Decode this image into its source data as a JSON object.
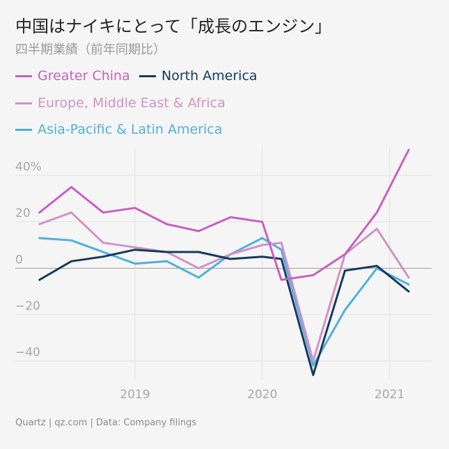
{
  "title": "中国はナイキにとって「成長のエンジン」",
  "subtitle": "四半期業績（前年同期比）",
  "source": "Quartz | qz.com | Data: Company filings",
  "colors": {
    "greater_china": "#c660c0",
    "north_america": "#153a5c",
    "emea": "#cf93c4",
    "apla": "#4fb0dc",
    "grid": "#e2e2e2",
    "zero_line": "#9a9a9a",
    "tick_text": "#a8a8a8"
  },
  "chart_data": {
    "type": "line",
    "title": "中国はナイキにとって「成長のエンジン」",
    "subtitle": "四半期業績（前年同期比）",
    "xlabel": "",
    "ylabel": "",
    "x": [
      2018.25,
      2018.5,
      2018.75,
      2019.0,
      2019.25,
      2019.5,
      2019.75,
      2020.0,
      2020.15,
      2020.4,
      2020.65,
      2020.9,
      2021.15
    ],
    "x_ticks": [
      2019,
      2020,
      2021
    ],
    "x_tick_labels": [
      "2019",
      "2020",
      "2021"
    ],
    "ylim": [
      -47,
      52
    ],
    "y_ticks": [
      40,
      20,
      0,
      -20,
      -40
    ],
    "y_tick_labels": [
      "40%",
      "20",
      "0",
      "−20",
      "−40"
    ],
    "grid": true,
    "legend_position": "top-left",
    "series": [
      {
        "name": "Greater China",
        "color_key": "greater_china",
        "values": [
          24,
          35,
          24,
          26,
          19,
          16,
          22,
          20,
          -5,
          -3,
          6,
          24,
          51
        ]
      },
      {
        "name": "North America",
        "color_key": "north_america",
        "values": [
          -5,
          3,
          5,
          8,
          7,
          7,
          4,
          5,
          4,
          -46,
          -1,
          1,
          -10
        ]
      },
      {
        "name": "Europe, Middle East & Africa",
        "color_key": "emea",
        "values": [
          19,
          24,
          11,
          9,
          7,
          0,
          6,
          10,
          11,
          -40,
          6,
          17,
          -4
        ]
      },
      {
        "name": "Asia-Pacific & Latin America",
        "color_key": "apla",
        "values": [
          13,
          12,
          7,
          2,
          3,
          -4,
          6,
          13,
          8,
          -42,
          -18,
          0,
          -7
        ]
      }
    ]
  }
}
